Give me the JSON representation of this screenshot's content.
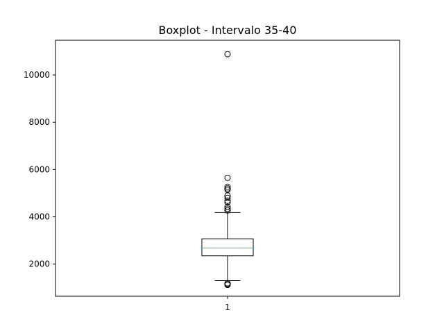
{
  "chart_data": {
    "type": "boxplot",
    "title": "Boxplot - Intervalo 35-40",
    "xlabel": "",
    "ylabel": "",
    "categories": [
      "1"
    ],
    "ylim": [
      640,
      11470
    ],
    "yticks": [
      2000,
      4000,
      6000,
      8000,
      10000
    ],
    "grid": false,
    "series": [
      {
        "stats": {
          "whisker_low": 1300,
          "q1": 2350,
          "median": 2680,
          "q3": 3070,
          "whisker_high": 4180
        },
        "outliers": [
          10880,
          5650,
          5270,
          5200,
          5140,
          4900,
          4800,
          4680,
          4620,
          4420,
          4340,
          4270,
          1190,
          1150,
          1120
        ],
        "box_color": "#000000",
        "median_color": "#ff7f0e"
      }
    ]
  }
}
